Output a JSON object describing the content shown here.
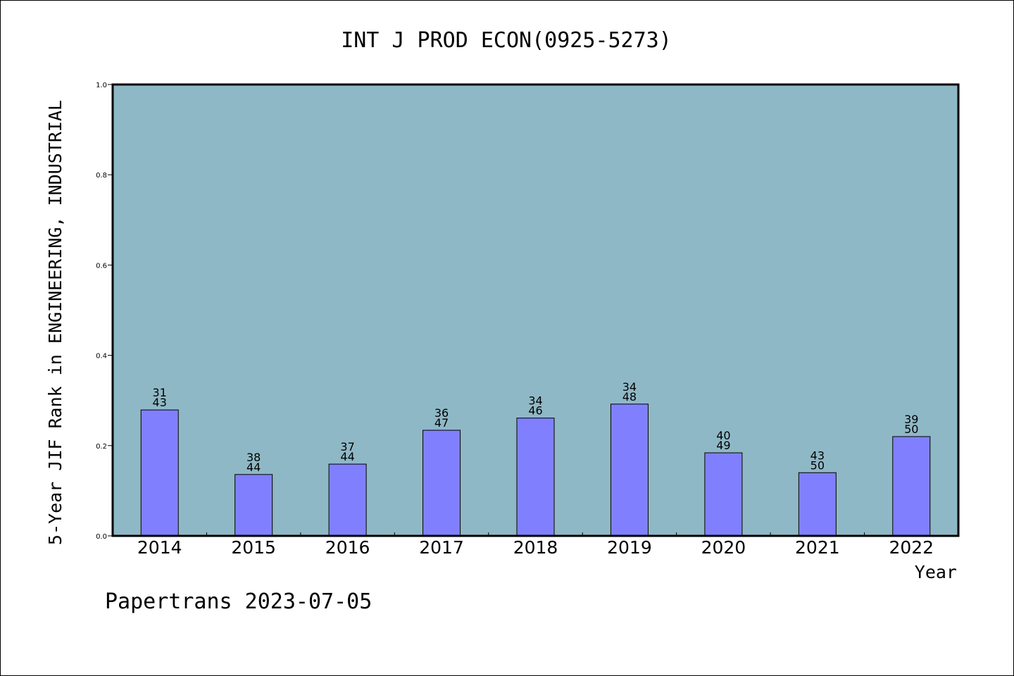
{
  "chart_data": {
    "type": "bar",
    "title": "INT J PROD ECON(0925-5273)",
    "xlabel": "Year",
    "ylabel": "5-Year JIF Rank in ENGINEERING, INDUSTRIAL",
    "ylim": [
      0,
      1.0
    ],
    "yticks": [
      "0.0",
      "0.2",
      "0.4",
      "0.6",
      "0.8",
      "1.0"
    ],
    "categories": [
      "2014",
      "2015",
      "2016",
      "2017",
      "2018",
      "2019",
      "2020",
      "2021",
      "2022"
    ],
    "values": [
      0.279,
      0.136,
      0.159,
      0.234,
      0.261,
      0.292,
      0.184,
      0.14,
      0.22
    ],
    "rank": [
      "31",
      "38",
      "37",
      "36",
      "34",
      "34",
      "40",
      "43",
      "39"
    ],
    "total": [
      "43",
      "44",
      "44",
      "47",
      "46",
      "48",
      "49",
      "50",
      "50"
    ],
    "grid": false,
    "colors": {
      "plot_bg": "#8fb8c6",
      "bar": "#8080ff",
      "bar_edge": "#000000"
    }
  },
  "footer": {
    "text": "Papertrans 2023-07-05"
  }
}
